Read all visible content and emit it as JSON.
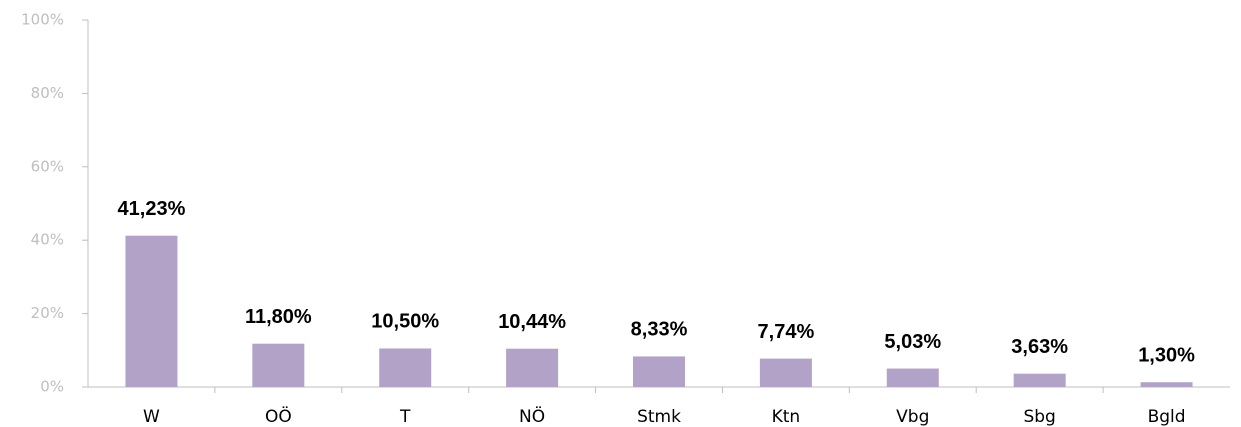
{
  "chart_data": {
    "type": "bar",
    "categories": [
      "W",
      "OÖ",
      "T",
      "NÖ",
      "Stmk",
      "Ktn",
      "Vbg",
      "Sbg",
      "Bgld"
    ],
    "values": [
      41.23,
      11.8,
      10.5,
      10.44,
      8.33,
      7.74,
      5.03,
      3.63,
      1.3
    ],
    "value_labels": [
      "41,23%",
      "11,80%",
      "10,50%",
      "10,44%",
      "8,33%",
      "7,74%",
      "5,03%",
      "3,63%",
      "1,30%"
    ],
    "color": "#b3a2c7",
    "ylim": [
      0,
      100
    ],
    "yticks": [
      {
        "value": 0,
        "label": "0%"
      },
      {
        "value": 20,
        "label": "20%"
      },
      {
        "value": 40,
        "label": "40%"
      },
      {
        "value": 60,
        "label": "60%"
      },
      {
        "value": 80,
        "label": "80%"
      },
      {
        "value": 100,
        "label": "100%"
      }
    ],
    "grid": false
  }
}
